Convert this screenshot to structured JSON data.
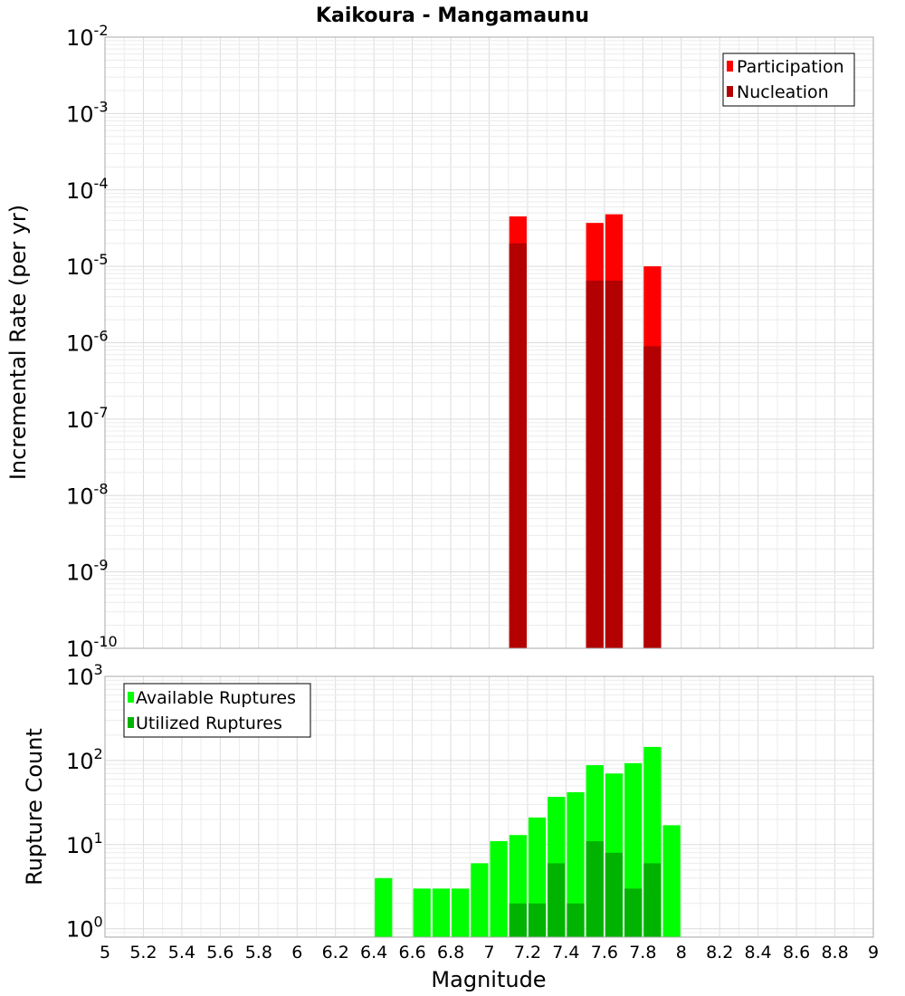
{
  "chart_data": {
    "type": "bar",
    "title": "Kaikoura - Mangamaunu",
    "xlabel": "Magnitude",
    "xlim": [
      5,
      9
    ],
    "x_ticks": [
      "5",
      "5.2",
      "5.4",
      "5.6",
      "5.8",
      "6",
      "6.2",
      "6.4",
      "6.6",
      "6.8",
      "7",
      "7.2",
      "7.4",
      "7.6",
      "7.8",
      "8",
      "8.2",
      "8.4",
      "8.6",
      "8.8",
      "9"
    ],
    "bin_width": 0.1,
    "panels": [
      {
        "name": "rate",
        "ylabel": "Incremental Rate (per yr)",
        "yscale": "log",
        "ylim_exp": [
          -10,
          -2
        ],
        "y_ticks": [
          {
            "base": "10",
            "exp": "-2"
          },
          {
            "base": "10",
            "exp": "-3"
          },
          {
            "base": "10",
            "exp": "-4"
          },
          {
            "base": "10",
            "exp": "-5"
          },
          {
            "base": "10",
            "exp": "-6"
          },
          {
            "base": "10",
            "exp": "-7"
          },
          {
            "base": "10",
            "exp": "-8"
          },
          {
            "base": "10",
            "exp": "-9"
          },
          {
            "base": "10",
            "exp": "-10"
          }
        ],
        "legend": {
          "position": "top-right"
        },
        "series": [
          {
            "name": "Participation",
            "color": "#ff0000",
            "points": [
              {
                "x": 7.15,
                "y": 4.5e-05
              },
              {
                "x": 7.55,
                "y": 3.7e-05
              },
              {
                "x": 7.65,
                "y": 4.8e-05
              },
              {
                "x": 7.85,
                "y": 1e-05
              }
            ]
          },
          {
            "name": "Nucleation",
            "color": "#b30000",
            "points": [
              {
                "x": 7.15,
                "y": 2e-05
              },
              {
                "x": 7.55,
                "y": 6.5e-06
              },
              {
                "x": 7.65,
                "y": 6.5e-06
              },
              {
                "x": 7.85,
                "y": 9e-07
              }
            ]
          }
        ]
      },
      {
        "name": "count",
        "ylabel": "Rupture Count",
        "yscale": "log",
        "ylim_exp": [
          -0.1,
          3
        ],
        "y_ticks": [
          {
            "base": "10",
            "exp": "3"
          },
          {
            "base": "10",
            "exp": "2"
          },
          {
            "base": "10",
            "exp": "1"
          },
          {
            "base": "10",
            "exp": "0"
          }
        ],
        "legend": {
          "position": "top-left"
        },
        "series": [
          {
            "name": "Available Ruptures",
            "color": "#00ff00",
            "points": [
              {
                "x": 6.45,
                "y": 4
              },
              {
                "x": 6.65,
                "y": 3
              },
              {
                "x": 6.75,
                "y": 3
              },
              {
                "x": 6.85,
                "y": 3
              },
              {
                "x": 6.95,
                "y": 6
              },
              {
                "x": 7.05,
                "y": 11
              },
              {
                "x": 7.15,
                "y": 13
              },
              {
                "x": 7.25,
                "y": 21
              },
              {
                "x": 7.35,
                "y": 37
              },
              {
                "x": 7.45,
                "y": 42
              },
              {
                "x": 7.55,
                "y": 88
              },
              {
                "x": 7.65,
                "y": 70
              },
              {
                "x": 7.75,
                "y": 93
              },
              {
                "x": 7.85,
                "y": 145
              },
              {
                "x": 7.95,
                "y": 17
              }
            ]
          },
          {
            "name": "Utilized Ruptures",
            "color": "#00b300",
            "points": [
              {
                "x": 7.15,
                "y": 2
              },
              {
                "x": 7.25,
                "y": 2
              },
              {
                "x": 7.35,
                "y": 6
              },
              {
                "x": 7.45,
                "y": 2
              },
              {
                "x": 7.55,
                "y": 11
              },
              {
                "x": 7.65,
                "y": 8
              },
              {
                "x": 7.75,
                "y": 3
              },
              {
                "x": 7.85,
                "y": 6
              }
            ]
          }
        ]
      }
    ]
  }
}
